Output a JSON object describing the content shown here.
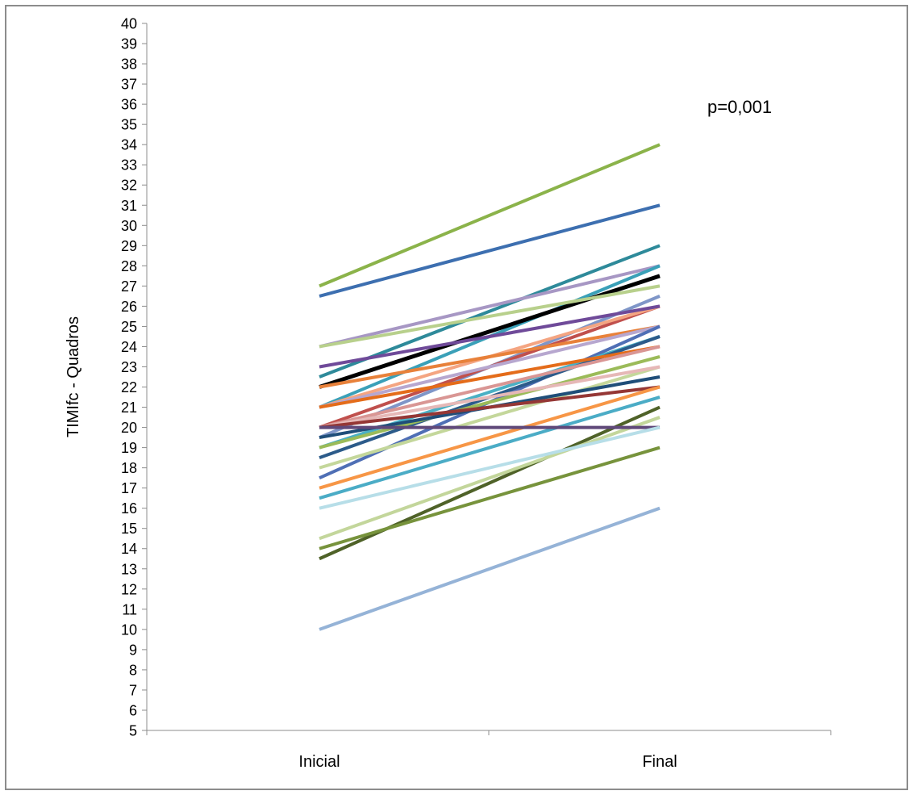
{
  "chart_data": {
    "type": "line",
    "title": "",
    "xlabel": "",
    "ylabel": "TIMIfc - Quadros",
    "categories": [
      "Inicial",
      "Final"
    ],
    "ylim": [
      5,
      40
    ],
    "y_ticks": [
      5,
      6,
      7,
      8,
      9,
      10,
      11,
      12,
      13,
      14,
      15,
      16,
      17,
      18,
      19,
      20,
      21,
      22,
      23,
      24,
      25,
      26,
      27,
      28,
      29,
      30,
      31,
      32,
      33,
      34,
      35,
      36,
      37,
      38,
      39,
      40
    ],
    "grid": false,
    "legend": "none",
    "annotation": "p=0,001",
    "series": [
      {
        "values": [
          27,
          34
        ],
        "color": "#8bb34a",
        "width": 4
      },
      {
        "values": [
          26.5,
          31
        ],
        "color": "#3d6fb0",
        "width": 4
      },
      {
        "values": [
          22.5,
          29
        ],
        "color": "#2e8a9a",
        "width": 4
      },
      {
        "values": [
          24,
          28
        ],
        "color": "#a797c4",
        "width": 4
      },
      {
        "values": [
          21,
          28
        ],
        "color": "#3aa0b8",
        "width": 4
      },
      {
        "values": [
          22,
          27.5
        ],
        "color": "#000000",
        "width": 5
      },
      {
        "values": [
          24,
          27
        ],
        "color": "#b8d08c",
        "width": 4
      },
      {
        "values": [
          19.5,
          26.5
        ],
        "color": "#7f96c8",
        "width": 4
      },
      {
        "values": [
          20,
          26
        ],
        "color": "#c0504d",
        "width": 4
      },
      {
        "values": [
          21,
          26
        ],
        "color": "#f4a582",
        "width": 4
      },
      {
        "values": [
          23,
          26
        ],
        "color": "#6f4a99",
        "width": 4
      },
      {
        "values": [
          22,
          25
        ],
        "color": "#e8813a",
        "width": 4
      },
      {
        "values": [
          21,
          25
        ],
        "color": "#b7a7cf",
        "width": 4
      },
      {
        "values": [
          17.5,
          25
        ],
        "color": "#4f6fb5",
        "width": 4
      },
      {
        "values": [
          19,
          24.5
        ],
        "color": "#4ab0c4",
        "width": 4
      },
      {
        "values": [
          18.5,
          24.5
        ],
        "color": "#2c5b8a",
        "width": 4
      },
      {
        "values": [
          21,
          24
        ],
        "color": "#e46c1a",
        "width": 4
      },
      {
        "values": [
          20,
          24
        ],
        "color": "#d99694",
        "width": 4
      },
      {
        "values": [
          19,
          23.5
        ],
        "color": "#9bbb59",
        "width": 4
      },
      {
        "values": [
          18,
          23
        ],
        "color": "#c4d79b",
        "width": 4
      },
      {
        "values": [
          20,
          23
        ],
        "color": "#e6b8b7",
        "width": 4
      },
      {
        "values": [
          19.5,
          22.5
        ],
        "color": "#1f4e79",
        "width": 4
      },
      {
        "values": [
          20,
          22
        ],
        "color": "#953735",
        "width": 4
      },
      {
        "values": [
          17,
          22
        ],
        "color": "#f79646",
        "width": 4
      },
      {
        "values": [
          16.5,
          21.5
        ],
        "color": "#4bacc6",
        "width": 4
      },
      {
        "values": [
          13.5,
          21
        ],
        "color": "#4f6228",
        "width": 4
      },
      {
        "values": [
          14.5,
          20.5
        ],
        "color": "#c3d69b",
        "width": 4
      },
      {
        "values": [
          20,
          20
        ],
        "color": "#60497a",
        "width": 4
      },
      {
        "values": [
          16,
          20
        ],
        "color": "#b7dee8",
        "width": 4
      },
      {
        "values": [
          14,
          19
        ],
        "color": "#77933c",
        "width": 4
      },
      {
        "values": [
          10,
          16
        ],
        "color": "#95b3d7",
        "width": 4
      }
    ]
  }
}
